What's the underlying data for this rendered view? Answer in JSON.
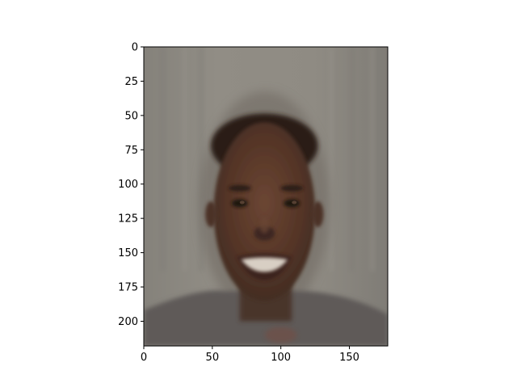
{
  "chart_data": {
    "type": "image",
    "title": "",
    "xlabel": "",
    "ylabel": "",
    "xlim": [
      0,
      178
    ],
    "ylim": [
      218,
      0
    ],
    "x_ticks": [
      0,
      50,
      100,
      150
    ],
    "y_ticks": [
      0,
      25,
      50,
      75,
      100,
      125,
      150,
      175,
      200
    ],
    "x_tick_labels": [
      "0",
      "50",
      "100",
      "150"
    ],
    "y_tick_labels": [
      "0",
      "25",
      "50",
      "75",
      "100",
      "125",
      "150",
      "175",
      "200"
    ],
    "y_axis_inverted": true,
    "grid": false,
    "image_description_colors": {
      "background": "#8f8b82",
      "skin": "#5a3a2a",
      "hair": "#2a1d18",
      "shirt": "#5e5a58",
      "teeth": "#d8cfc4"
    }
  }
}
